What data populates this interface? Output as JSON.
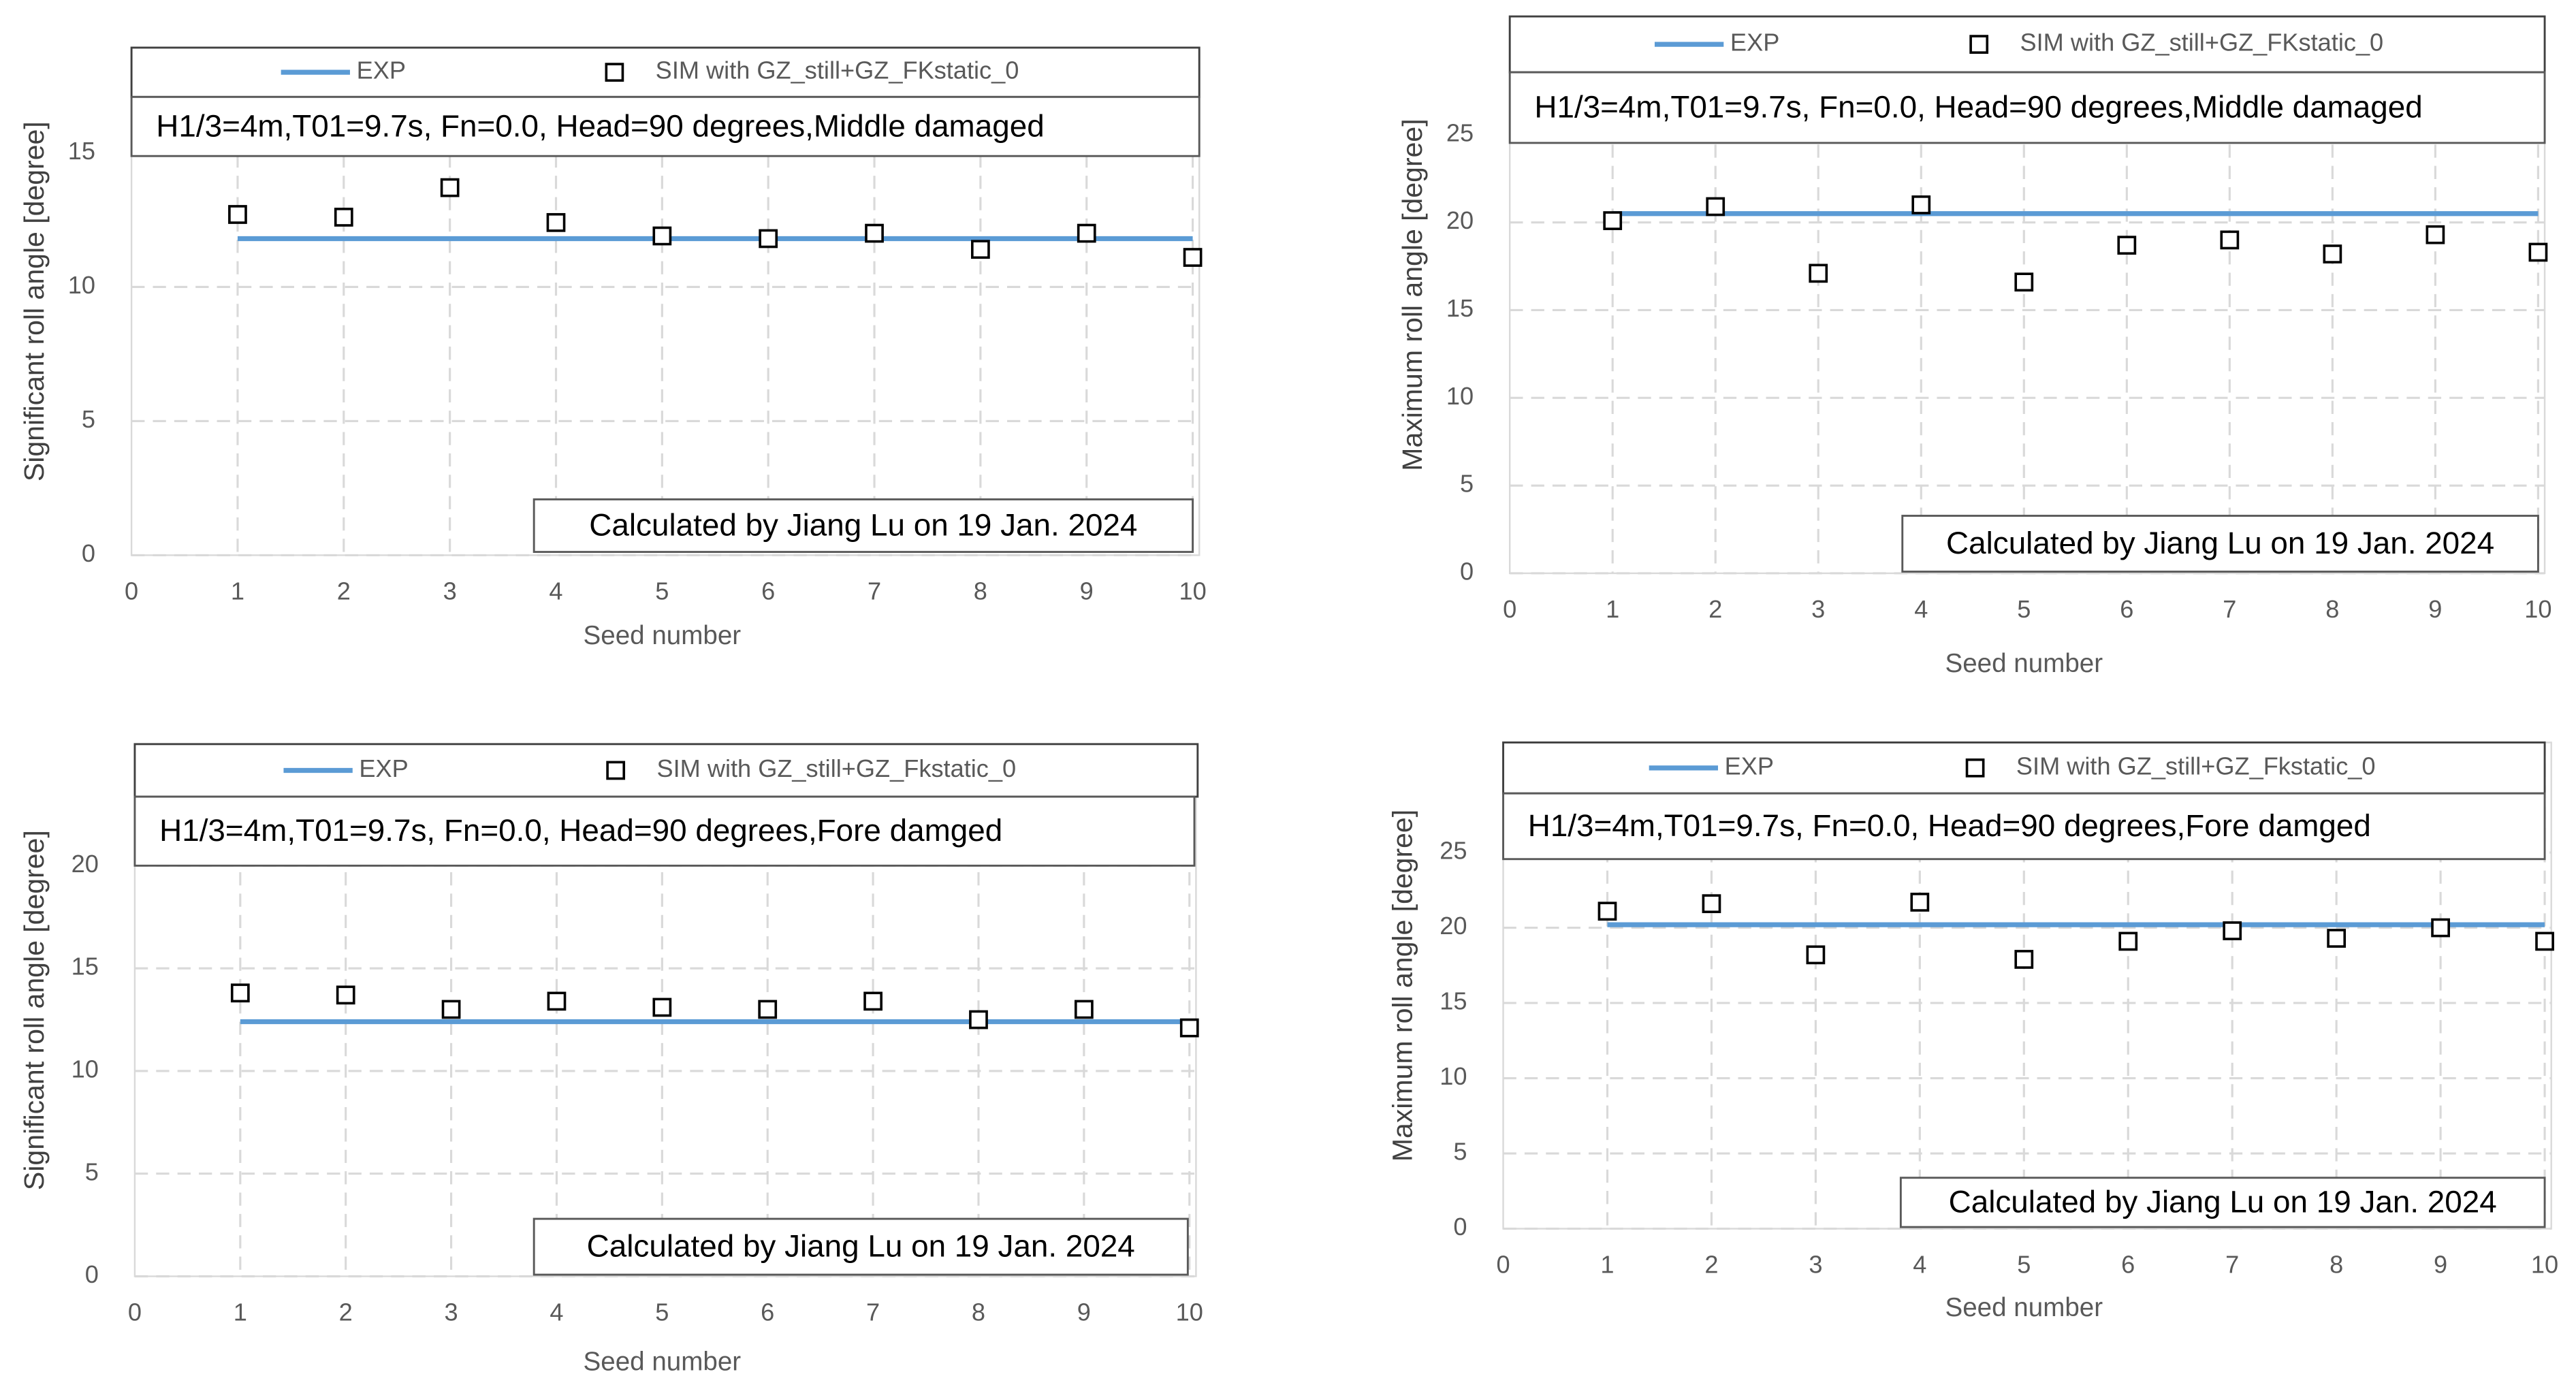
{
  "chart_data": [
    {
      "type": "line",
      "subtitle": "H1/3=4m,T01=9.7s, Fn=0.0, Head=90 degrees,Middle damaged",
      "annotation": "Calculated by Jiang Lu on 19  Jan. 2024",
      "xlabel": "Seed number",
      "ylabel": "Significant roll angle [degree]",
      "x": [
        1,
        2,
        3,
        4,
        5,
        6,
        7,
        8,
        9,
        10
      ],
      "xlim": [
        0,
        10
      ],
      "xticks": [
        0,
        1,
        2,
        3,
        4,
        5,
        6,
        7,
        8,
        9,
        10
      ],
      "ylim": [
        0,
        15
      ],
      "yticks": [
        0,
        5,
        10,
        15
      ],
      "grid": true,
      "series": [
        {
          "name": "EXP",
          "color": "#5b9bd5",
          "style": "line",
          "values": [
            11.8,
            11.8,
            11.8,
            11.8,
            11.8,
            11.8,
            11.8,
            11.8,
            11.8,
            11.8
          ]
        },
        {
          "name": "SIM with GZ_still+GZ_FKstatic_0",
          "color": "#000000",
          "style": "square",
          "values": [
            12.7,
            12.6,
            13.7,
            12.4,
            11.9,
            11.8,
            12.0,
            11.4,
            12.0,
            11.1
          ]
        }
      ]
    },
    {
      "type": "line",
      "subtitle": "H1/3=4m,T01=9.7s, Fn=0.0, Head=90 degrees,Middle damaged",
      "annotation": "Calculated by Jiang Lu on 19  Jan. 2024",
      "xlabel": "Seed number",
      "ylabel": "Maximum roll angle [degree]",
      "x": [
        1,
        2,
        3,
        4,
        5,
        6,
        7,
        8,
        9,
        10
      ],
      "xlim": [
        0,
        10
      ],
      "xticks": [
        0,
        1,
        2,
        3,
        4,
        5,
        6,
        7,
        8,
        9,
        10
      ],
      "ylim": [
        0,
        25
      ],
      "yticks": [
        0,
        5,
        10,
        15,
        20,
        25
      ],
      "grid": true,
      "series": [
        {
          "name": "EXP",
          "color": "#5b9bd5",
          "style": "line",
          "values": [
            20.5,
            20.5,
            20.5,
            20.5,
            20.5,
            20.5,
            20.5,
            20.5,
            20.5,
            20.5
          ]
        },
        {
          "name": "SIM with GZ_still+GZ_FKstatic_0",
          "color": "#000000",
          "style": "square",
          "values": [
            20.1,
            20.9,
            17.1,
            21.0,
            16.6,
            18.7,
            19.0,
            18.2,
            19.3,
            18.3
          ]
        }
      ]
    },
    {
      "type": "line",
      "subtitle": "H1/3=4m,T01=9.7s, Fn=0.0, Head=90 degrees,Fore damged",
      "annotation": "Calculated by Jiang Lu on 19  Jan. 2024",
      "xlabel": "Seed number",
      "ylabel": "Significant roll angle [degree]",
      "x": [
        1,
        2,
        3,
        4,
        5,
        6,
        7,
        8,
        9,
        10
      ],
      "xlim": [
        0,
        10
      ],
      "xticks": [
        0,
        1,
        2,
        3,
        4,
        5,
        6,
        7,
        8,
        9,
        10
      ],
      "ylim": [
        0,
        20
      ],
      "yticks": [
        0,
        5,
        10,
        15,
        20
      ],
      "grid": true,
      "series": [
        {
          "name": "EXP",
          "color": "#5b9bd5",
          "style": "line",
          "values": [
            12.4,
            12.4,
            12.4,
            12.4,
            12.4,
            12.4,
            12.4,
            12.4,
            12.4,
            12.4
          ]
        },
        {
          "name": "SIM with GZ_still+GZ_Fkstatic_0",
          "color": "#000000",
          "style": "square",
          "values": [
            13.8,
            13.7,
            13.0,
            13.4,
            13.1,
            13.0,
            13.4,
            12.5,
            13.0,
            12.1
          ]
        }
      ]
    },
    {
      "type": "line",
      "subtitle": "H1/3=4m,T01=9.7s, Fn=0.0, Head=90 degrees,Fore damged",
      "annotation": "Calculated by Jiang Lu on 19  Jan. 2024",
      "xlabel": "Seed number",
      "ylabel": "Maximum roll angle [degree]",
      "x": [
        1,
        2,
        3,
        4,
        5,
        6,
        7,
        8,
        9,
        10
      ],
      "xlim": [
        0,
        10
      ],
      "xticks": [
        0,
        1,
        2,
        3,
        4,
        5,
        6,
        7,
        8,
        9,
        10
      ],
      "ylim": [
        0,
        25
      ],
      "yticks": [
        0,
        5,
        10,
        15,
        20,
        25
      ],
      "grid": true,
      "series": [
        {
          "name": "EXP",
          "color": "#5b9bd5",
          "style": "line",
          "values": [
            20.2,
            20.2,
            20.2,
            20.2,
            20.2,
            20.2,
            20.2,
            20.2,
            20.2,
            20.2
          ]
        },
        {
          "name": "SIM with GZ_still+GZ_Fkstatic_0",
          "color": "#000000",
          "style": "square",
          "values": [
            21.1,
            21.6,
            18.2,
            21.7,
            17.9,
            19.1,
            19.8,
            19.3,
            20.0,
            19.1
          ]
        }
      ]
    }
  ]
}
